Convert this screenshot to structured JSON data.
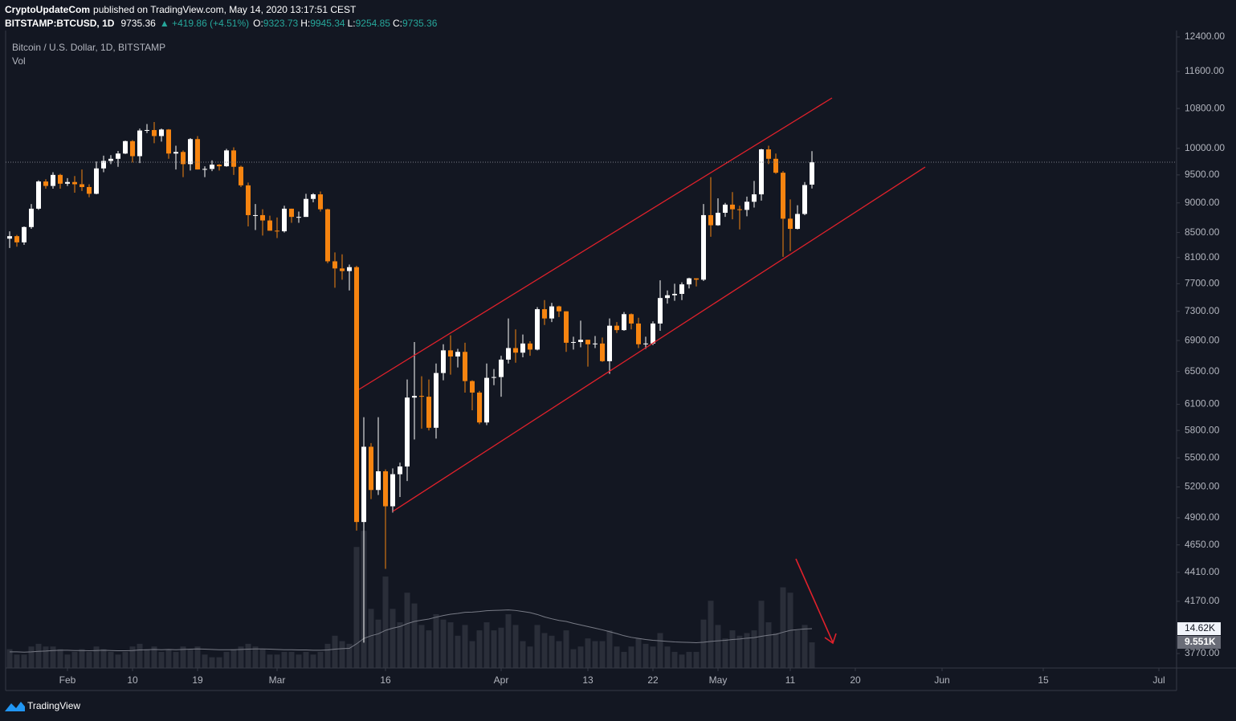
{
  "header": {
    "publisher": "CryptoUpdateCom",
    "published_text": "published on TradingView.com, May 14, 2020 13:17:51 CEST",
    "symbol": "BITSTAMP:BTCUSD, 1D",
    "change_label": "▲ +419.86 (+4.51%)",
    "ohlc_labels": [
      "O:",
      "H:",
      "L:",
      "C:"
    ]
  },
  "footer": {
    "brand": "TradingView"
  },
  "chart_data": {
    "type": "candlestick",
    "title": "Bitcoin / U.S. Dollar, 1D, BITSTAMP",
    "volume_title": "Vol",
    "x": [
      "2020-01-24",
      "2020-01-25",
      "2020-01-26",
      "2020-01-27",
      "2020-01-28",
      "2020-01-29",
      "2020-01-30",
      "2020-01-31",
      "2020-02-01",
      "2020-02-02",
      "2020-02-03",
      "2020-02-04",
      "2020-02-05",
      "2020-02-06",
      "2020-02-07",
      "2020-02-08",
      "2020-02-09",
      "2020-02-10",
      "2020-02-11",
      "2020-02-12",
      "2020-02-13",
      "2020-02-14",
      "2020-02-15",
      "2020-02-16",
      "2020-02-17",
      "2020-02-18",
      "2020-02-19",
      "2020-02-20",
      "2020-02-21",
      "2020-02-22",
      "2020-02-23",
      "2020-02-24",
      "2020-02-25",
      "2020-02-26",
      "2020-02-27",
      "2020-02-28",
      "2020-02-29",
      "2020-03-01",
      "2020-03-02",
      "2020-03-03",
      "2020-03-04",
      "2020-03-05",
      "2020-03-06",
      "2020-03-07",
      "2020-03-08",
      "2020-03-09",
      "2020-03-10",
      "2020-03-11",
      "2020-03-12",
      "2020-03-13",
      "2020-03-14",
      "2020-03-15",
      "2020-03-16",
      "2020-03-17",
      "2020-03-18",
      "2020-03-19",
      "2020-03-20",
      "2020-03-21",
      "2020-03-22",
      "2020-03-23",
      "2020-03-24",
      "2020-03-25",
      "2020-03-26",
      "2020-03-27",
      "2020-03-28",
      "2020-03-29",
      "2020-03-30",
      "2020-03-31",
      "2020-04-01",
      "2020-04-02",
      "2020-04-03",
      "2020-04-04",
      "2020-04-05",
      "2020-04-06",
      "2020-04-07",
      "2020-04-08",
      "2020-04-09",
      "2020-04-10",
      "2020-04-11",
      "2020-04-12",
      "2020-04-13",
      "2020-04-14",
      "2020-04-15",
      "2020-04-16",
      "2020-04-17",
      "2020-04-18",
      "2020-04-19",
      "2020-04-20",
      "2020-04-21",
      "2020-04-22",
      "2020-04-23",
      "2020-04-24",
      "2020-04-25",
      "2020-04-26",
      "2020-04-27",
      "2020-04-28",
      "2020-04-29",
      "2020-04-30",
      "2020-05-01",
      "2020-05-02",
      "2020-05-03",
      "2020-05-04",
      "2020-05-05",
      "2020-05-06",
      "2020-05-07",
      "2020-05-08",
      "2020-05-09",
      "2020-05-10",
      "2020-05-11",
      "2020-05-12",
      "2020-05-13",
      "2020-05-14"
    ],
    "open": [
      8400,
      8440,
      8340,
      8590,
      8900,
      9380,
      9300,
      9500,
      9340,
      9370,
      9330,
      9280,
      9160,
      9620,
      9760,
      9800,
      9900,
      10140,
      9850,
      10350,
      10360,
      10240,
      10370,
      9900,
      9930,
      9700,
      10180,
      9600,
      9610,
      9690,
      9660,
      9960,
      9650,
      9310,
      8790,
      8790,
      8700,
      8530,
      8520,
      8900,
      8760,
      8760,
      9070,
      9150,
      8890,
      8040,
      7930,
      7890,
      7950,
      4860,
      5620,
      5170,
      5360,
      5010,
      5330,
      5410,
      6180,
      6200,
      6190,
      5830,
      6480,
      6770,
      6690,
      6750,
      6380,
      6240,
      5890,
      6420,
      6430,
      6650,
      6800,
      6740,
      6860,
      6780,
      7330,
      7200,
      7370,
      7300,
      6870,
      6880,
      6910,
      6850,
      6860,
      6630,
      7100,
      7040,
      7260,
      7130,
      6850,
      6860,
      7130,
      7490,
      7530,
      7550,
      7690,
      7780,
      7760,
      8790,
      8620,
      8830,
      8970,
      8890,
      8880,
      9020,
      9150,
      9980,
      9800,
      9540,
      8730,
      8560,
      8810,
      9323.73
    ],
    "high": [
      8520,
      8460,
      8600,
      8980,
      9400,
      9420,
      9550,
      9520,
      9440,
      9480,
      9600,
      9330,
      9750,
      9860,
      9870,
      9950,
      10150,
      10160,
      10390,
      10480,
      10520,
      10390,
      10380,
      10050,
      9960,
      10200,
      10240,
      9660,
      9770,
      9700,
      9990,
      10020,
      9670,
      9360,
      8980,
      8890,
      8780,
      8750,
      8950,
      8900,
      8850,
      9160,
      9170,
      9200,
      8900,
      8180,
      8150,
      7990,
      7970,
      5950,
      5660,
      5950,
      5380,
      5390,
      5450,
      6400,
      6880,
      6440,
      6400,
      6600,
      6850,
      6970,
      6790,
      6870,
      6390,
      6260,
      6600,
      6530,
      6700,
      7200,
      7050,
      6980,
      6890,
      7360,
      7460,
      7420,
      7380,
      7300,
      6950,
      7170,
      6910,
      6960,
      6940,
      7200,
      7150,
      7290,
      7270,
      7210,
      6950,
      7160,
      7750,
      7600,
      7700,
      7720,
      7790,
      7780,
      8980,
      9460,
      9080,
      9000,
      9190,
      8950,
      9110,
      9390,
      9990,
      10050,
      9900,
      9570,
      9060,
      8960,
      9370,
      9945.34
    ],
    "low": [
      8250,
      8270,
      8300,
      8560,
      8880,
      9250,
      9250,
      9250,
      9300,
      9180,
      9210,
      9100,
      9150,
      9550,
      9700,
      9650,
      9890,
      9730,
      9720,
      10300,
      10100,
      10130,
      9800,
      9600,
      9460,
      9580,
      9600,
      9460,
      9570,
      9580,
      9650,
      9500,
      9280,
      8600,
      8540,
      8450,
      8530,
      8410,
      8500,
      8660,
      8660,
      8760,
      9010,
      8850,
      8010,
      7640,
      7760,
      7600,
      4780,
      3850,
      5080,
      5120,
      4440,
      4950,
      5100,
      5260,
      5700,
      5820,
      5800,
      5710,
      6390,
      6460,
      6550,
      6240,
      6030,
      5870,
      5860,
      6330,
      6190,
      6600,
      6610,
      6680,
      6700,
      6770,
      7110,
      7150,
      7220,
      6750,
      6780,
      6810,
      6560,
      6800,
      6620,
      6470,
      7000,
      7030,
      7050,
      6800,
      6790,
      6840,
      7030,
      7410,
      7450,
      7460,
      7630,
      7660,
      7740,
      8430,
      8610,
      8760,
      8720,
      8550,
      8770,
      8920,
      9040,
      9700,
      9520,
      8110,
      8200,
      8550,
      8790,
      9254.85
    ],
    "close": [
      8440,
      8340,
      8590,
      8900,
      9380,
      9300,
      9500,
      9340,
      9370,
      9330,
      9280,
      9160,
      9620,
      9760,
      9800,
      9900,
      10140,
      9850,
      10350,
      10360,
      10240,
      10370,
      9900,
      9930,
      9700,
      10180,
      9600,
      9610,
      9690,
      9660,
      9960,
      9650,
      9310,
      8790,
      8790,
      8700,
      8530,
      8520,
      8900,
      8760,
      8760,
      9070,
      9150,
      8890,
      8040,
      7930,
      7890,
      7950,
      4860,
      5620,
      5170,
      5360,
      5010,
      5330,
      5410,
      6180,
      6200,
      6190,
      5830,
      6480,
      6770,
      6690,
      6750,
      6380,
      6240,
      5890,
      6420,
      6430,
      6650,
      6800,
      6740,
      6860,
      6780,
      7330,
      7200,
      7370,
      7300,
      6870,
      6880,
      6910,
      6850,
      6860,
      6630,
      7100,
      7040,
      7260,
      7130,
      6850,
      6860,
      7130,
      7490,
      7530,
      7550,
      7690,
      7780,
      7760,
      8790,
      8620,
      8830,
      8970,
      8890,
      8880,
      9020,
      9150,
      9980,
      9800,
      9540,
      8730,
      8560,
      8810,
      9315.5,
      9735.36
    ],
    "volume": [
      7000,
      5000,
      5000,
      8000,
      9000,
      8000,
      8000,
      7000,
      5000,
      6000,
      7000,
      6000,
      8000,
      7000,
      6000,
      5000,
      6000,
      8000,
      9000,
      7000,
      8000,
      6000,
      7000,
      6000,
      8000,
      7000,
      8000,
      5000,
      4000,
      4000,
      6000,
      7000,
      8000,
      9000,
      8000,
      7000,
      5000,
      5000,
      6000,
      6000,
      5000,
      6000,
      5000,
      6000,
      9000,
      12000,
      10000,
      9000,
      45000,
      51000,
      22000,
      18000,
      34000,
      22000,
      17000,
      28000,
      24000,
      16000,
      14000,
      20000,
      18000,
      17000,
      12000,
      16000,
      10000,
      14000,
      17000,
      14000,
      15000,
      20000,
      16000,
      10000,
      8000,
      16000,
      13000,
      12000,
      10000,
      14000,
      7000,
      8000,
      11000,
      10000,
      10000,
      14000,
      8000,
      6000,
      8000,
      11000,
      9000,
      8000,
      13000,
      8000,
      6000,
      5000,
      6000,
      6000,
      18000,
      25000,
      16000,
      11000,
      14000,
      12000,
      13000,
      14000,
      25000,
      17000,
      13000,
      30000,
      28000,
      14000,
      16000,
      9551
    ],
    "volume_ma": [
      6000,
      6000,
      5900,
      6000,
      6200,
      6300,
      6500,
      6600,
      6600,
      6500,
      6500,
      6400,
      6500,
      6600,
      6500,
      6400,
      6400,
      6500,
      6700,
      6800,
      6900,
      6800,
      6900,
      6800,
      6900,
      7000,
      7100,
      7000,
      6900,
      6800,
      6800,
      6800,
      6900,
      7000,
      7100,
      7100,
      7000,
      6900,
      6800,
      6800,
      6700,
      6700,
      6600,
      6600,
      6700,
      7000,
      7200,
      7300,
      9000,
      11000,
      12000,
      12700,
      14000,
      14800,
      15400,
      16500,
      17300,
      17800,
      18200,
      18900,
      19500,
      20000,
      20300,
      20700,
      20800,
      21000,
      21300,
      21400,
      21500,
      21600,
      21400,
      21000,
      20600,
      19900,
      19000,
      18300,
      17700,
      17300,
      16600,
      16000,
      15400,
      14800,
      14200,
      13500,
      12800,
      12000,
      11400,
      11000,
      10600,
      10300,
      10100,
      9900,
      9700,
      9600,
      9500,
      9400,
      9600,
      9900,
      10100,
      10300,
      10600,
      10800,
      11100,
      11300,
      11800,
      12200,
      12500,
      13300,
      14000,
      14300,
      14500,
      14620
    ],
    "volume_label": "9.551K",
    "volume_ma_label": "14.62K",
    "up_color": "#ffffff",
    "down_color": "#f68410",
    "volume_color": "#2a2e39",
    "volume_ma_color": "#787b86",
    "xlim": [
      "2020-01-23",
      "2020-07-04"
    ],
    "xticks": [
      {
        "value": "2020-02-01",
        "label": "Feb"
      },
      {
        "value": "2020-02-10",
        "label": "10"
      },
      {
        "value": "2020-02-19",
        "label": "19"
      },
      {
        "value": "2020-03-01",
        "label": "Mar"
      },
      {
        "value": "2020-03-16",
        "label": "16"
      },
      {
        "value": "2020-04-01",
        "label": "Apr"
      },
      {
        "value": "2020-04-13",
        "label": "13"
      },
      {
        "value": "2020-04-22",
        "label": "22"
      },
      {
        "value": "2020-05-01",
        "label": "May"
      },
      {
        "value": "2020-05-11",
        "label": "11"
      },
      {
        "value": "2020-05-20",
        "label": "20"
      },
      {
        "value": "2020-06-01",
        "label": "Jun"
      },
      {
        "value": "2020-06-15",
        "label": "15"
      },
      {
        "value": "2020-07-01",
        "label": "Jul"
      }
    ],
    "ylim": [
      3666,
      12555
    ],
    "log_scale": true,
    "grid": false,
    "last_price_line": true,
    "yticks": [
      {
        "value": 12400,
        "label": "12400.00"
      },
      {
        "value": 11600,
        "label": "11600.00"
      },
      {
        "value": 10800,
        "label": "10800.00"
      },
      {
        "value": 10000,
        "label": "10000.00"
      },
      {
        "value": 9500,
        "label": "9500.00"
      },
      {
        "value": 9000,
        "label": "9000.00"
      },
      {
        "value": 8500,
        "label": "8500.00"
      },
      {
        "value": 8100,
        "label": "8100.00"
      },
      {
        "value": 7700,
        "label": "7700.00"
      },
      {
        "value": 7300,
        "label": "7300.00"
      },
      {
        "value": 6900,
        "label": "6900.00"
      },
      {
        "value": 6500,
        "label": "6500.00"
      },
      {
        "value": 6100,
        "label": "6100.00"
      },
      {
        "value": 5800,
        "label": "5800.00"
      },
      {
        "value": 5500,
        "label": "5500.00"
      },
      {
        "value": 5200,
        "label": "5200.00"
      },
      {
        "value": 4900,
        "label": "4900.00"
      },
      {
        "value": 4650,
        "label": "4650.00"
      },
      {
        "value": 4410,
        "label": "4410.00"
      },
      {
        "value": 4170,
        "label": "4170.00"
      },
      {
        "value": 3770,
        "label": "3770.00"
      }
    ],
    "vol_ylim": [
      0,
      60000
    ]
  }
}
